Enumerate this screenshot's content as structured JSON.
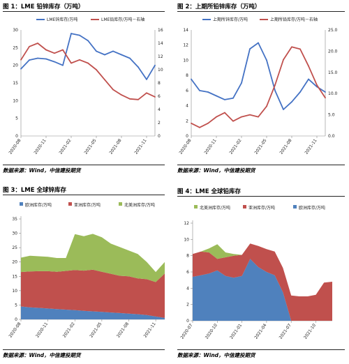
{
  "figures": [
    {
      "title": "图 1：LME 铅锌库存（万吨）",
      "source": "数据来源：Wind，中信建投期货"
    },
    {
      "title": "图 2：上期所铅锌库存（万吨）",
      "source": "数据来源：Wind，中信建投期货"
    },
    {
      "title": "图 3：LME 全球锌库存",
      "source": "数据来源：Wind，中信建投期货"
    },
    {
      "title": "图 4：LME 全球铅库存",
      "source": "数据来源：Wind，中信建投期货"
    }
  ],
  "chart_data": [
    {
      "type": "line",
      "title": "图 1：LME 铅锌库存（万吨）",
      "x_ticks": [
        "2020-08",
        "2020-11",
        "2021-02",
        "2021-05",
        "2021-08",
        "2021-11"
      ],
      "x": [
        "2020-08",
        "2020-09",
        "2020-10",
        "2020-11",
        "2020-12",
        "2021-01",
        "2021-02",
        "2021-03",
        "2021-04",
        "2021-05",
        "2021-06",
        "2021-07",
        "2021-08",
        "2021-09",
        "2021-10",
        "2021-11",
        "2021-12"
      ],
      "y_left": {
        "min": 0,
        "max": 30,
        "ticks": [
          0,
          5,
          10,
          15,
          20,
          25,
          30
        ]
      },
      "y_right": {
        "min": 0,
        "max": 16,
        "ticks": [
          0,
          2,
          4,
          6,
          8,
          10,
          12,
          14,
          16
        ],
        "label": "右轴"
      },
      "legend_position": "top",
      "series": [
        {
          "name": "LME锌库存/万吨",
          "color": "#4472C4",
          "axis": "left",
          "values": [
            19.0,
            21.5,
            22.0,
            21.8,
            21.0,
            20.0,
            29.0,
            28.5,
            27.0,
            24.0,
            23.0,
            24.0,
            23.0,
            22.0,
            19.5,
            16.0,
            20.0
          ]
        },
        {
          "name": "LME铅库存/万吨－右轴",
          "color": "#C0504D",
          "axis": "right",
          "values": [
            11.5,
            13.5,
            14.0,
            13.0,
            12.5,
            13.0,
            11.0,
            11.5,
            11.0,
            10.0,
            8.5,
            7.0,
            6.2,
            5.6,
            5.5,
            6.5,
            5.9
          ]
        }
      ]
    },
    {
      "type": "line",
      "title": "图 2：上期所铅锌库存（万吨）",
      "x_ticks": [
        "2020-08",
        "2020-11",
        "2021-02",
        "2021-05",
        "2021-08",
        "2021-11"
      ],
      "x": [
        "2020-08",
        "2020-09",
        "2020-10",
        "2020-11",
        "2020-12",
        "2021-01",
        "2021-02",
        "2021-03",
        "2021-04",
        "2021-05",
        "2021-06",
        "2021-07",
        "2021-08",
        "2021-09",
        "2021-10",
        "2021-11",
        "2021-12"
      ],
      "y_left": {
        "min": 0,
        "max": 14,
        "ticks": [
          0,
          2,
          4,
          6,
          8,
          10,
          12,
          14
        ]
      },
      "y_right": {
        "min": 0,
        "max": 25,
        "ticks": [
          0.0,
          5.0,
          10.0,
          15.0,
          20.0,
          25.0
        ],
        "label": "右轴"
      },
      "legend_position": "top",
      "series": [
        {
          "name": "上期所锌库存/万吨",
          "color": "#4472C4",
          "axis": "left",
          "values": [
            7.5,
            6.0,
            5.8,
            5.3,
            4.8,
            5.0,
            7.0,
            11.5,
            12.3,
            10.0,
            6.0,
            3.5,
            4.5,
            5.8,
            7.5,
            6.5,
            5.8
          ]
        },
        {
          "name": "上期所铅库存/万吨－右轴",
          "color": "#C0504D",
          "axis": "right",
          "values": [
            3.0,
            2.0,
            3.0,
            4.5,
            5.5,
            3.5,
            4.5,
            5.0,
            4.5,
            7.0,
            12.0,
            18.0,
            21.0,
            20.5,
            16.5,
            12.0,
            9.0
          ]
        }
      ]
    },
    {
      "type": "area",
      "stacked": true,
      "title": "图 3：LME 全球锌库存",
      "x_ticks": [
        "2020-08",
        "2020-11",
        "2021-02",
        "2021-05",
        "2021-08",
        "2021-11"
      ],
      "x": [
        "2020-08",
        "2020-09",
        "2020-10",
        "2020-11",
        "2020-12",
        "2021-01",
        "2021-02",
        "2021-03",
        "2021-04",
        "2021-05",
        "2021-06",
        "2021-07",
        "2021-08",
        "2021-09",
        "2021-10",
        "2021-11",
        "2021-12"
      ],
      "y": {
        "min": 0,
        "max": 35,
        "ticks": [
          0,
          5,
          10,
          15,
          20,
          25,
          30,
          35
        ]
      },
      "legend_position": "top",
      "series": [
        {
          "name": "欧洲库存/万吨",
          "color": "#4F81BD",
          "values": [
            4.5,
            4.2,
            4.0,
            3.8,
            3.6,
            3.4,
            3.2,
            3.0,
            2.8,
            2.6,
            2.4,
            2.2,
            2.0,
            1.8,
            1.5,
            1.0,
            0.5
          ]
        },
        {
          "name": "亚洲库存/万吨",
          "color": "#C0504D",
          "values": [
            12.0,
            12.5,
            12.8,
            13.0,
            13.0,
            13.5,
            14.0,
            14.0,
            14.5,
            14.0,
            13.5,
            13.0,
            13.0,
            12.5,
            12.5,
            12.0,
            15.5
          ]
        },
        {
          "name": "北美洲库存/万吨",
          "color": "#9BBB59",
          "values": [
            5.0,
            5.5,
            5.2,
            5.0,
            4.8,
            4.5,
            12.5,
            12.0,
            12.5,
            12.0,
            10.5,
            10.0,
            9.0,
            8.5,
            6.0,
            3.5,
            4.0
          ]
        }
      ]
    },
    {
      "type": "area",
      "stacked": true,
      "title": "图 4：LME 全球铅库存",
      "x_ticks": [
        "2020-07",
        "2020-10",
        "2021-01",
        "2021-04",
        "2021-07",
        "2021-10"
      ],
      "x": [
        "2020-07",
        "2020-08",
        "2020-09",
        "2020-10",
        "2020-11",
        "2020-12",
        "2021-01",
        "2021-02",
        "2021-03",
        "2021-04",
        "2021-05",
        "2021-06",
        "2021-07",
        "2021-08",
        "2021-09",
        "2021-10",
        "2021-11",
        "2021-12"
      ],
      "y": {
        "min": 0,
        "max": 12,
        "ticks": [
          0,
          2,
          4,
          6,
          8,
          10,
          12
        ]
      },
      "legend_position": "top",
      "series": [
        {
          "name": "北美洲库存/万吨",
          "color": "#9BBB59",
          "values": [
            0.0,
            0.0,
            0.5,
            1.8,
            0.6,
            0.2,
            0.0,
            0.0,
            0.0,
            0.0,
            0.0,
            0.0,
            0.0,
            0.0,
            0.0,
            0.0,
            0.0,
            0.0
          ]
        },
        {
          "name": "亚洲库存/万吨",
          "color": "#C0504D",
          "values": [
            2.8,
            2.9,
            2.6,
            1.4,
            2.3,
            2.7,
            2.6,
            1.9,
            2.6,
            2.8,
            2.9,
            3.0,
            3.1,
            3.0,
            3.0,
            3.2,
            4.7,
            4.8
          ]
        },
        {
          "name": "欧洲库存/万吨",
          "color": "#4F81BD",
          "values": [
            5.4,
            5.6,
            5.8,
            6.2,
            5.5,
            5.3,
            5.5,
            7.6,
            6.6,
            6.0,
            5.6,
            3.5,
            0.0,
            0.0,
            0.0,
            0.0,
            0.0,
            0.0
          ]
        }
      ]
    }
  ]
}
